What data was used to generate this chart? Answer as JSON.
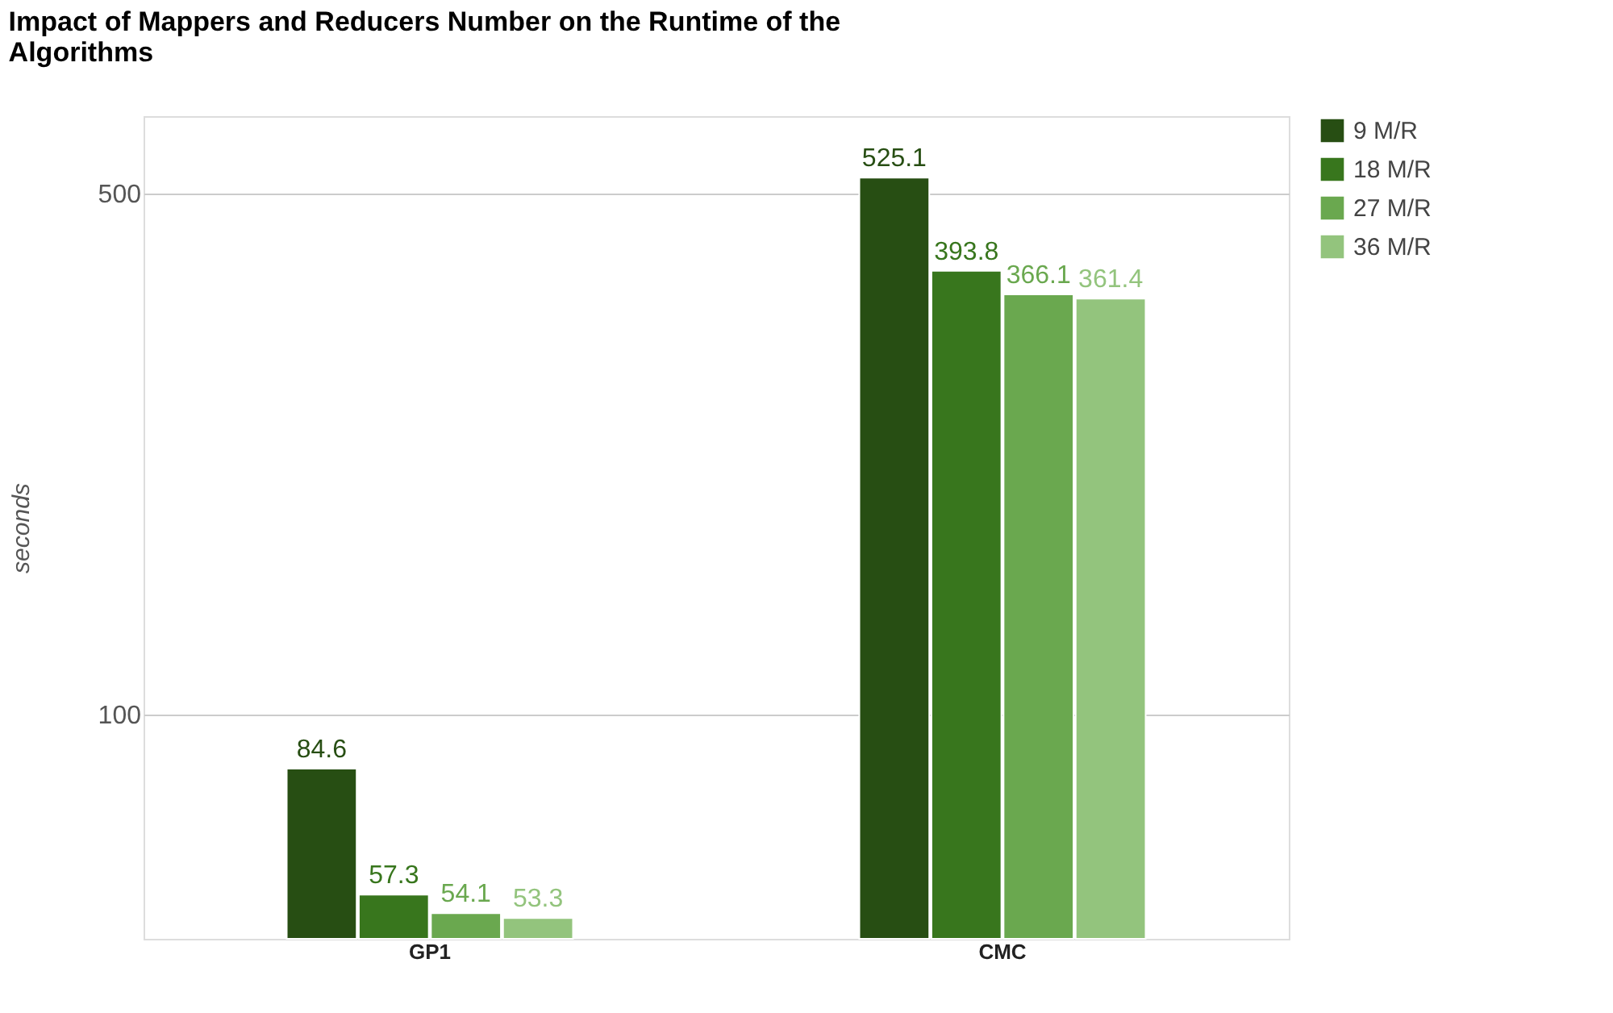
{
  "chart_data": {
    "type": "bar",
    "title": "Impact of Mappers and Reducers Number on the Runtime of the Algorithms",
    "ylabel": "seconds",
    "categories": [
      "GP1",
      "CMC"
    ],
    "series": [
      {
        "name": "9 M/R",
        "color": "#274e13",
        "values": [
          84.6,
          525.1
        ]
      },
      {
        "name": "18 M/R",
        "color": "#38761d",
        "values": [
          57.3,
          393.8
        ]
      },
      {
        "name": "27 M/R",
        "color": "#6aa84f",
        "values": [
          54.1,
          366.1
        ]
      },
      {
        "name": "36 M/R",
        "color": "#93c47d",
        "values": [
          53.3,
          361.4
        ]
      }
    ],
    "log": "y",
    "ylim": [
      50,
      635
    ],
    "yticks": [
      100,
      500
    ],
    "grid": "y",
    "legend": "top right",
    "data_labels": true
  }
}
